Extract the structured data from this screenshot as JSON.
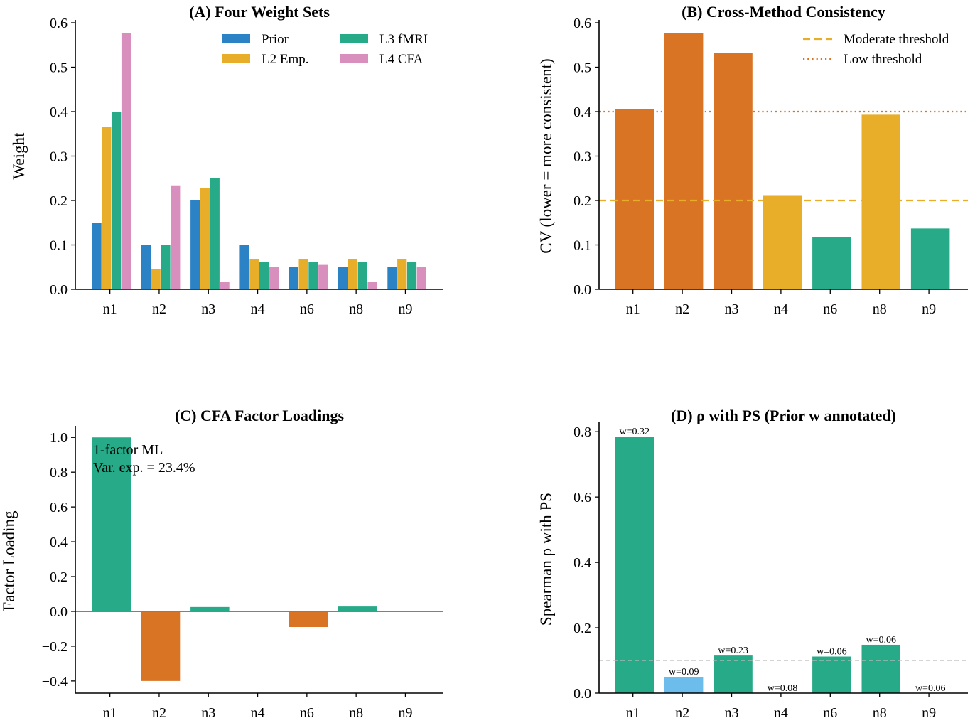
{
  "chart_data": [
    {
      "panel": "A",
      "type": "bar",
      "title": "(A) Four Weight Sets",
      "xlabel": "",
      "ylabel": "Weight",
      "categories": [
        "n1",
        "n2",
        "n3",
        "n4",
        "n6",
        "n8",
        "n9"
      ],
      "ylim": [
        0,
        0.6
      ],
      "yticks": [
        "0.0",
        "0.1",
        "0.2",
        "0.3",
        "0.4",
        "0.5",
        "0.6"
      ],
      "legend_position": "top-right",
      "series": [
        {
          "name": "Prior",
          "color": "#2b83c6",
          "values": [
            0.15,
            0.1,
            0.2,
            0.1,
            0.05,
            0.05,
            0.05
          ]
        },
        {
          "name": "L2 Emp.",
          "color": "#e8ae2a",
          "values": [
            0.365,
            0.045,
            0.228,
            0.068,
            0.068,
            0.068,
            0.068
          ]
        },
        {
          "name": "L3 fMRI",
          "color": "#27aa87",
          "values": [
            0.4,
            0.1,
            0.25,
            0.062,
            0.062,
            0.062,
            0.062
          ]
        },
        {
          "name": "L4 CFA",
          "color": "#d98fbe",
          "values": [
            0.577,
            0.234,
            0.016,
            0.05,
            0.055,
            0.016,
            0.05
          ]
        }
      ]
    },
    {
      "panel": "B",
      "type": "bar",
      "title": "(B) Cross-Method Consistency",
      "xlabel": "",
      "ylabel": "CV (lower = more consistent)",
      "categories": [
        "n1",
        "n2",
        "n3",
        "n4",
        "n6",
        "n8",
        "n9"
      ],
      "values": [
        0.405,
        0.577,
        0.532,
        0.212,
        0.118,
        0.393,
        0.137
      ],
      "bar_colors": [
        "#d97425",
        "#d97425",
        "#d97425",
        "#e8ae2a",
        "#27aa87",
        "#e8ae2a",
        "#27aa87"
      ],
      "ylim": [
        0,
        0.6
      ],
      "yticks": [
        "0.0",
        "0.1",
        "0.2",
        "0.3",
        "0.4",
        "0.5",
        "0.6"
      ],
      "legend_position": "top-right",
      "reference_lines": [
        {
          "name": "Moderate threshold",
          "y": 0.2,
          "style": "dashed",
          "color": "#e8ae2a"
        },
        {
          "name": "Low threshold",
          "y": 0.4,
          "style": "dotted",
          "color": "#d97425"
        }
      ]
    },
    {
      "panel": "C",
      "type": "bar",
      "title": "(C) CFA Factor Loadings",
      "xlabel": "",
      "ylabel": "Factor Loading",
      "categories": [
        "n1",
        "n2",
        "n3",
        "n4",
        "n6",
        "n8",
        "n9"
      ],
      "values": [
        1.0,
        -0.4,
        0.025,
        0.0,
        -0.09,
        0.028,
        0.0
      ],
      "positive_color": "#27aa87",
      "negative_color": "#d97425",
      "ylim": [
        -0.47,
        1.05
      ],
      "yticks": [
        "−0.4",
        "−0.2",
        "0.0",
        "0.2",
        "0.4",
        "0.6",
        "0.8",
        "1.0"
      ],
      "ytick_values": [
        -0.4,
        -0.2,
        0.0,
        0.2,
        0.4,
        0.6,
        0.8,
        1.0
      ],
      "annotation": [
        "1-factor ML",
        "Var. exp. = 23.4%"
      ]
    },
    {
      "panel": "D",
      "type": "bar",
      "title": "(D) ρ with PS (Prior w annotated)",
      "xlabel": "",
      "ylabel": "Spearman ρ with PS",
      "categories": [
        "n1",
        "n2",
        "n3",
        "n4",
        "n6",
        "n8",
        "n9"
      ],
      "values": [
        0.785,
        0.05,
        0.115,
        0.0,
        0.112,
        0.148,
        0.0
      ],
      "bar_colors": [
        "#27aa87",
        "#6cbcec",
        "#27aa87",
        "#27aa87",
        "#27aa87",
        "#27aa87",
        "#27aa87"
      ],
      "bar_labels": [
        "w=0.32",
        "w=0.09",
        "w=0.23",
        "w=0.08",
        "w=0.06",
        "w=0.06",
        "w=0.06"
      ],
      "ylim": [
        0,
        0.82
      ],
      "yticks": [
        "0.0",
        "0.2",
        "0.4",
        "0.6",
        "0.8"
      ],
      "ytick_values": [
        0.0,
        0.2,
        0.4,
        0.6,
        0.8
      ],
      "reference_lines": [
        {
          "y": 0.1,
          "style": "dashed",
          "color": "#bbbbbb"
        }
      ]
    }
  ]
}
